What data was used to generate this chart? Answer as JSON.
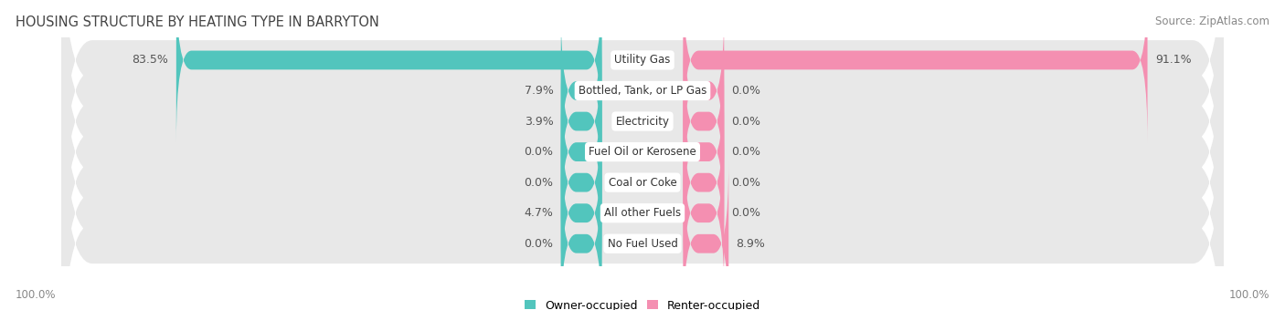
{
  "title": "HOUSING STRUCTURE BY HEATING TYPE IN BARRYTON",
  "source": "Source: ZipAtlas.com",
  "categories": [
    "Utility Gas",
    "Bottled, Tank, or LP Gas",
    "Electricity",
    "Fuel Oil or Kerosene",
    "Coal or Coke",
    "All other Fuels",
    "No Fuel Used"
  ],
  "owner_values": [
    83.5,
    7.9,
    3.9,
    0.0,
    0.0,
    4.7,
    0.0
  ],
  "renter_values": [
    91.1,
    0.0,
    0.0,
    0.0,
    0.0,
    0.0,
    8.9
  ],
  "owner_color": "#52C5BD",
  "renter_color": "#F48FB1",
  "bg_row_color": "#E8E8E8",
  "white_bg": "#FFFFFF",
  "axis_label_left": "100.0%",
  "axis_label_right": "100.0%",
  "max_value": 100.0,
  "min_bar_width": 8.0,
  "title_fontsize": 10.5,
  "source_fontsize": 8.5,
  "label_fontsize": 9,
  "category_fontsize": 8.5,
  "legend_fontsize": 9,
  "value_color_outside": "#555555",
  "value_color_inside": "#FFFFFF"
}
